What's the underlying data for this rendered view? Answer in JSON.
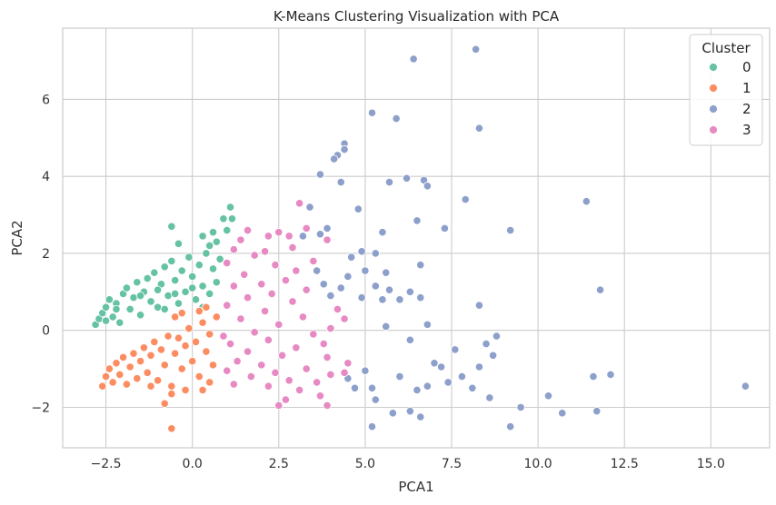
{
  "chart_data": {
    "type": "scatter",
    "title": "K-Means Clustering Visualization with PCA",
    "xlabel": "PCA1",
    "ylabel": "PCA2",
    "xlim": [
      -3.75,
      16.7
    ],
    "ylim": [
      -3.05,
      7.85
    ],
    "xticks": [
      -2.5,
      0.0,
      2.5,
      5.0,
      7.5,
      10.0,
      12.5,
      15.0
    ],
    "xtick_labels": [
      "−2.5",
      "0.0",
      "2.5",
      "5.0",
      "7.5",
      "10.0",
      "12.5",
      "15.0"
    ],
    "yticks": [
      -2,
      0,
      2,
      4,
      6
    ],
    "ytick_labels": [
      "−2",
      "0",
      "2",
      "4",
      "6"
    ],
    "grid": true,
    "legend": {
      "title": "Cluster",
      "position": "top-right"
    },
    "series": [
      {
        "name": "0",
        "color": "#66c2a5",
        "points": [
          [
            -2.8,
            0.15
          ],
          [
            -2.7,
            0.3
          ],
          [
            -2.6,
            0.45
          ],
          [
            -2.5,
            0.6
          ],
          [
            -2.4,
            0.8
          ],
          [
            -2.3,
            0.35
          ],
          [
            -2.2,
            0.7
          ],
          [
            -2.1,
            0.2
          ],
          [
            -2.0,
            0.95
          ],
          [
            -1.9,
            1.1
          ],
          [
            -1.8,
            0.55
          ],
          [
            -1.7,
            0.85
          ],
          [
            -1.6,
            1.25
          ],
          [
            -1.5,
            0.4
          ],
          [
            -1.4,
            1.0
          ],
          [
            -1.3,
            1.35
          ],
          [
            -1.2,
            0.75
          ],
          [
            -1.1,
            1.5
          ],
          [
            -1.0,
            0.6
          ],
          [
            -0.9,
            1.2
          ],
          [
            -0.8,
            1.65
          ],
          [
            -0.7,
            0.9
          ],
          [
            -0.6,
            1.8
          ],
          [
            -0.5,
            1.3
          ],
          [
            -0.4,
            0.7
          ],
          [
            -0.3,
            1.55
          ],
          [
            -0.2,
            1.0
          ],
          [
            -0.1,
            1.9
          ],
          [
            0.0,
            1.4
          ],
          [
            0.1,
            0.8
          ],
          [
            0.2,
            1.7
          ],
          [
            0.3,
            1.15
          ],
          [
            0.4,
            2.0
          ],
          [
            0.5,
            0.95
          ],
          [
            0.6,
            1.6
          ],
          [
            0.7,
            1.25
          ],
          [
            0.8,
            1.85
          ],
          [
            -1.5,
            0.9
          ],
          [
            -1.0,
            1.05
          ],
          [
            -0.5,
            0.95
          ],
          [
            0.0,
            1.1
          ],
          [
            0.3,
            0.6
          ],
          [
            -0.6,
            2.7
          ],
          [
            -0.4,
            2.25
          ],
          [
            0.3,
            2.45
          ],
          [
            0.6,
            2.55
          ],
          [
            0.7,
            2.3
          ],
          [
            0.9,
            2.9
          ],
          [
            1.1,
            3.2
          ],
          [
            1.15,
            2.9
          ],
          [
            1.0,
            2.6
          ],
          [
            0.5,
            2.2
          ],
          [
            -2.5,
            0.25
          ],
          [
            -2.2,
            0.55
          ],
          [
            -0.8,
            0.55
          ]
        ]
      },
      {
        "name": "1",
        "color": "#fc8d62",
        "points": [
          [
            -2.6,
            -1.45
          ],
          [
            -2.5,
            -1.2
          ],
          [
            -2.4,
            -1.0
          ],
          [
            -2.3,
            -1.35
          ],
          [
            -2.2,
            -0.85
          ],
          [
            -2.1,
            -1.15
          ],
          [
            -2.0,
            -0.7
          ],
          [
            -1.9,
            -1.4
          ],
          [
            -1.8,
            -0.95
          ],
          [
            -1.7,
            -0.6
          ],
          [
            -1.6,
            -1.25
          ],
          [
            -1.5,
            -0.8
          ],
          [
            -1.4,
            -0.45
          ],
          [
            -1.3,
            -1.1
          ],
          [
            -1.2,
            -0.65
          ],
          [
            -1.1,
            -0.3
          ],
          [
            -1.0,
            -1.3
          ],
          [
            -0.9,
            -0.5
          ],
          [
            -0.8,
            -0.9
          ],
          [
            -0.7,
            -0.15
          ],
          [
            -0.6,
            -1.45
          ],
          [
            -0.5,
            -0.6
          ],
          [
            -0.4,
            -0.2
          ],
          [
            -0.3,
            -1.0
          ],
          [
            -0.2,
            -0.4
          ],
          [
            -0.1,
            0.05
          ],
          [
            0.0,
            -0.8
          ],
          [
            0.1,
            -0.3
          ],
          [
            0.2,
            -1.2
          ],
          [
            0.3,
            0.2
          ],
          [
            0.4,
            -0.55
          ],
          [
            0.5,
            -0.1
          ],
          [
            0.6,
            -0.9
          ],
          [
            0.7,
            0.35
          ],
          [
            -0.5,
            0.35
          ],
          [
            -0.3,
            0.45
          ],
          [
            0.2,
            0.5
          ],
          [
            0.4,
            0.6
          ],
          [
            -0.6,
            -1.65
          ],
          [
            -0.8,
            -1.9
          ],
          [
            -0.6,
            -2.55
          ],
          [
            -1.2,
            -1.45
          ],
          [
            -0.2,
            -1.55
          ],
          [
            0.3,
            -1.55
          ],
          [
            0.5,
            -1.35
          ]
        ]
      },
      {
        "name": "2",
        "color": "#8da0cb",
        "points": [
          [
            8.2,
            7.3
          ],
          [
            6.4,
            7.05
          ],
          [
            5.2,
            5.65
          ],
          [
            5.9,
            5.5
          ],
          [
            8.3,
            5.25
          ],
          [
            4.4,
            4.85
          ],
          [
            4.4,
            4.7
          ],
          [
            4.2,
            4.55
          ],
          [
            4.1,
            4.45
          ],
          [
            3.7,
            4.05
          ],
          [
            6.2,
            3.95
          ],
          [
            6.7,
            3.9
          ],
          [
            5.7,
            3.85
          ],
          [
            6.8,
            3.75
          ],
          [
            4.3,
            3.85
          ],
          [
            7.9,
            3.4
          ],
          [
            11.4,
            3.35
          ],
          [
            3.4,
            3.2
          ],
          [
            4.8,
            3.15
          ],
          [
            6.5,
            2.85
          ],
          [
            7.3,
            2.65
          ],
          [
            9.2,
            2.6
          ],
          [
            5.5,
            2.55
          ],
          [
            3.2,
            2.45
          ],
          [
            3.7,
            2.5
          ],
          [
            3.9,
            2.65
          ],
          [
            4.9,
            2.05
          ],
          [
            5.3,
            2.0
          ],
          [
            6.6,
            1.7
          ],
          [
            4.6,
            1.9
          ],
          [
            3.6,
            1.55
          ],
          [
            4.5,
            1.4
          ],
          [
            5.0,
            1.55
          ],
          [
            5.6,
            1.5
          ],
          [
            3.8,
            1.2
          ],
          [
            4.3,
            1.1
          ],
          [
            5.3,
            1.15
          ],
          [
            5.7,
            1.05
          ],
          [
            6.3,
            1.0
          ],
          [
            11.8,
            1.05
          ],
          [
            4.0,
            0.9
          ],
          [
            4.9,
            0.85
          ],
          [
            5.5,
            0.8
          ],
          [
            6.0,
            0.8
          ],
          [
            6.6,
            0.85
          ],
          [
            8.3,
            0.65
          ],
          [
            6.8,
            0.15
          ],
          [
            5.6,
            0.1
          ],
          [
            6.3,
            -0.25
          ],
          [
            7.6,
            -0.5
          ],
          [
            8.5,
            -0.35
          ],
          [
            8.8,
            -0.15
          ],
          [
            7.0,
            -0.85
          ],
          [
            7.8,
            -1.2
          ],
          [
            8.6,
            -1.75
          ],
          [
            5.0,
            -1.05
          ],
          [
            6.0,
            -1.2
          ],
          [
            6.8,
            -1.45
          ],
          [
            5.2,
            -1.5
          ],
          [
            6.5,
            -1.55
          ],
          [
            7.4,
            -1.35
          ],
          [
            8.1,
            -1.5
          ],
          [
            8.3,
            -0.95
          ],
          [
            9.2,
            -2.5
          ],
          [
            9.5,
            -2.0
          ],
          [
            10.3,
            -1.7
          ],
          [
            10.7,
            -2.15
          ],
          [
            11.6,
            -1.2
          ],
          [
            11.7,
            -2.1
          ],
          [
            12.1,
            -1.15
          ],
          [
            16.0,
            -1.45
          ],
          [
            5.2,
            -2.5
          ],
          [
            5.8,
            -2.15
          ],
          [
            6.3,
            -2.1
          ],
          [
            6.6,
            -2.25
          ],
          [
            5.3,
            -1.8
          ],
          [
            4.7,
            -1.5
          ],
          [
            4.5,
            -1.25
          ],
          [
            8.7,
            -0.65
          ],
          [
            7.2,
            -0.95
          ]
        ]
      },
      {
        "name": "3",
        "color": "#e78ac3",
        "points": [
          [
            3.1,
            3.3
          ],
          [
            3.3,
            2.65
          ],
          [
            2.5,
            2.55
          ],
          [
            2.8,
            2.45
          ],
          [
            2.2,
            2.45
          ],
          [
            1.6,
            2.6
          ],
          [
            1.4,
            2.35
          ],
          [
            3.9,
            2.35
          ],
          [
            2.9,
            2.15
          ],
          [
            2.1,
            2.05
          ],
          [
            1.2,
            2.1
          ],
          [
            1.8,
            1.95
          ],
          [
            3.5,
            1.8
          ],
          [
            2.4,
            1.7
          ],
          [
            1.0,
            1.75
          ],
          [
            3.0,
            1.55
          ],
          [
            1.5,
            1.45
          ],
          [
            2.7,
            1.3
          ],
          [
            2.0,
            1.2
          ],
          [
            1.2,
            1.15
          ],
          [
            3.3,
            1.05
          ],
          [
            2.3,
            0.95
          ],
          [
            1.6,
            0.85
          ],
          [
            2.9,
            0.75
          ],
          [
            1.0,
            0.65
          ],
          [
            2.1,
            0.5
          ],
          [
            3.2,
            0.35
          ],
          [
            1.4,
            0.3
          ],
          [
            2.5,
            0.15
          ],
          [
            1.8,
            -0.05
          ],
          [
            3.5,
            -0.1
          ],
          [
            2.2,
            -0.25
          ],
          [
            1.1,
            -0.35
          ],
          [
            3.0,
            -0.45
          ],
          [
            1.6,
            -0.55
          ],
          [
            2.6,
            -0.65
          ],
          [
            3.9,
            -0.7
          ],
          [
            1.3,
            -0.8
          ],
          [
            2.0,
            -0.9
          ],
          [
            3.3,
            -1.0
          ],
          [
            1.0,
            -1.05
          ],
          [
            2.4,
            -1.1
          ],
          [
            4.0,
            -1.15
          ],
          [
            1.7,
            -1.2
          ],
          [
            2.8,
            -1.3
          ],
          [
            3.6,
            -1.35
          ],
          [
            1.2,
            -1.4
          ],
          [
            2.2,
            -1.45
          ],
          [
            3.1,
            -1.55
          ],
          [
            4.4,
            -1.1
          ],
          [
            3.7,
            -1.7
          ],
          [
            2.7,
            -1.8
          ],
          [
            3.9,
            -1.95
          ],
          [
            2.5,
            -1.95
          ],
          [
            4.5,
            -0.85
          ],
          [
            3.8,
            -0.35
          ],
          [
            4.2,
            0.55
          ],
          [
            4.4,
            0.3
          ],
          [
            4.0,
            0.05
          ],
          [
            0.9,
            -0.15
          ]
        ]
      }
    ]
  }
}
